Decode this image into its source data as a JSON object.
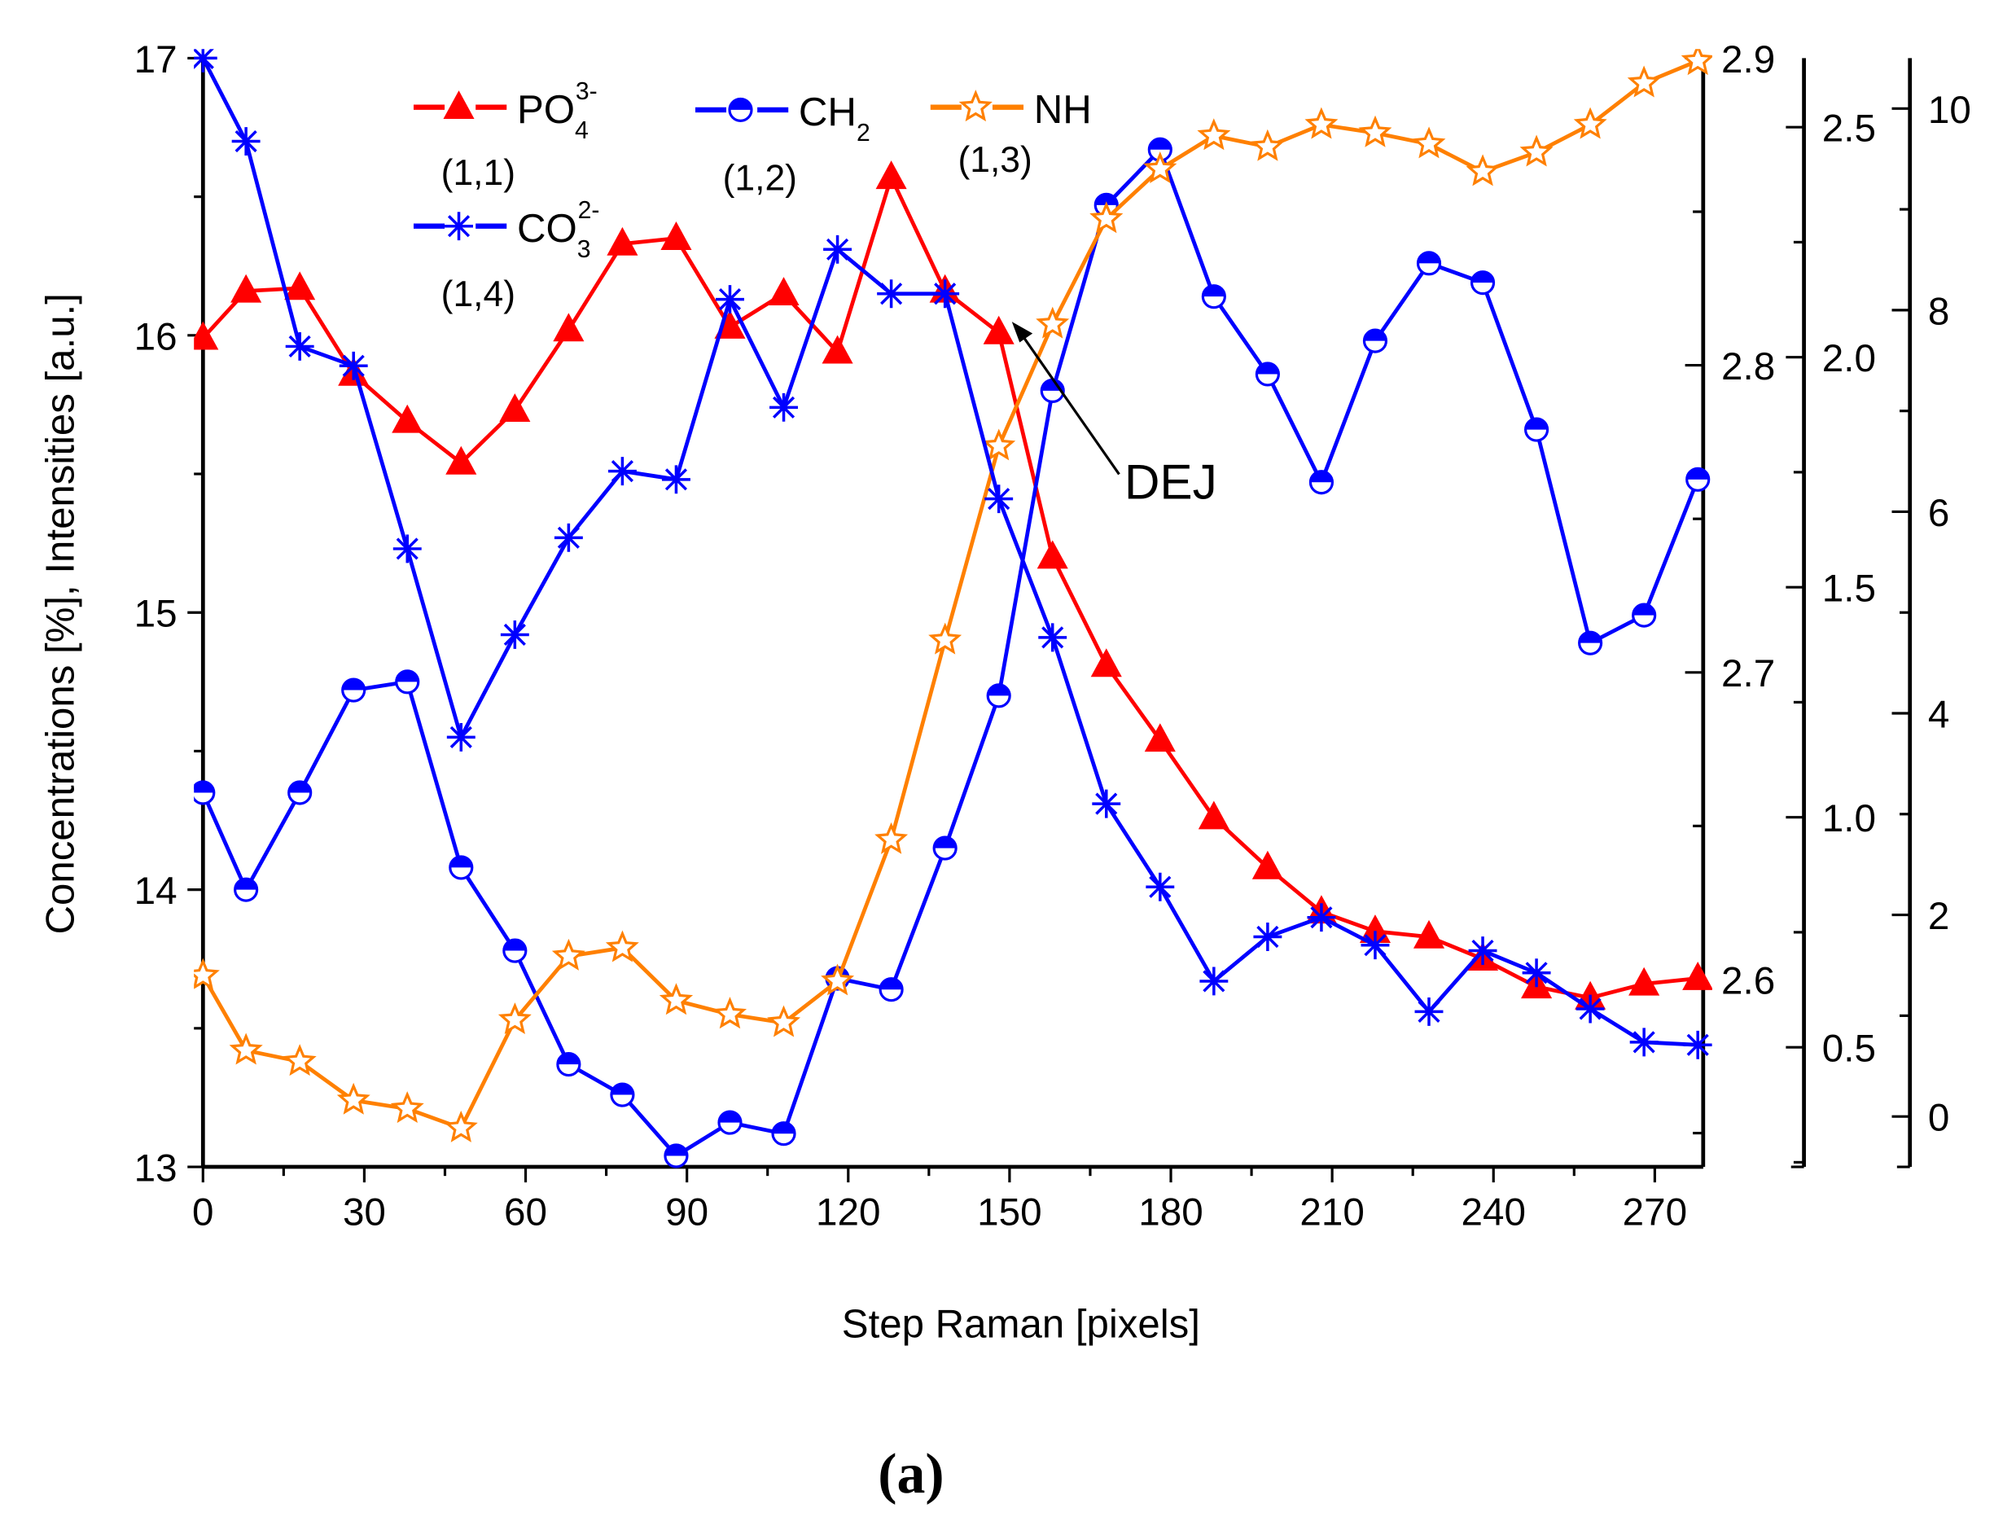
{
  "chart_data": {
    "type": "line",
    "title": "(a)",
    "xlabel": "Step Raman [pixels]",
    "ylabel": "Concentrations [%], Intensities [a.u.]",
    "xlim": [
      0,
      279
    ],
    "ylim": [
      13,
      17
    ],
    "x_ticks": [
      "0",
      "30",
      "60",
      "90",
      "120",
      "150",
      "180",
      "210",
      "240",
      "270"
    ],
    "y_ticks": [
      "13",
      "14",
      "15",
      "16",
      "17"
    ],
    "right_axes": [
      {
        "ticks": [
          "2.6",
          "2.7",
          "2.8",
          "2.9"
        ],
        "tick_values": [
          2.6,
          2.7,
          2.8,
          2.9
        ],
        "range": [
          2.539,
          2.9
        ]
      },
      {
        "ticks": [
          "0.5",
          "1.0",
          "1.5",
          "2.0",
          "2.5"
        ],
        "tick_values": [
          0.5,
          1.0,
          1.5,
          2.0,
          2.5
        ],
        "range": [
          0.24,
          2.65
        ]
      },
      {
        "ticks": [
          "0",
          "2",
          "4",
          "6",
          "8",
          "10"
        ],
        "tick_values": [
          0,
          2,
          4,
          6,
          8,
          10
        ],
        "range": [
          -0.5,
          10.5
        ]
      }
    ],
    "annotation": {
      "text": "DEJ",
      "points_to": [
        150,
        16.02
      ]
    },
    "x": [
      0,
      8,
      18,
      28,
      38,
      48,
      58,
      68,
      78,
      88,
      98,
      108,
      118,
      128,
      138,
      148,
      158,
      168,
      178,
      188,
      198,
      208,
      218,
      228,
      238,
      248,
      258,
      268,
      278
    ],
    "series": [
      {
        "name": "PO4",
        "sup": "3-",
        "sub": "4",
        "base": "PO",
        "tag": "(1,1)",
        "color": "#ff0000",
        "marker": "triangle",
        "values": [
          15.99,
          16.16,
          16.17,
          15.86,
          15.69,
          15.54,
          15.73,
          16.02,
          16.33,
          16.35,
          16.03,
          16.15,
          15.94,
          16.57,
          16.16,
          16.01,
          15.2,
          14.81,
          14.54,
          14.26,
          14.08,
          13.92,
          13.85,
          13.83,
          13.75,
          13.65,
          13.61,
          13.66,
          13.68
        ]
      },
      {
        "name": "CH2",
        "sup": "",
        "sub": "2",
        "base": "CH",
        "tag": "(1,2)",
        "color": "#0000ff",
        "marker": "half-circle",
        "values": [
          14.35,
          14.0,
          14.35,
          14.72,
          14.75,
          14.08,
          13.78,
          13.37,
          13.26,
          13.04,
          13.16,
          13.12,
          13.68,
          13.64,
          14.15,
          14.7,
          15.8,
          16.47,
          16.67,
          16.14,
          15.86,
          15.47,
          15.98,
          16.26,
          16.19,
          15.66,
          14.89,
          14.99,
          15.48
        ]
      },
      {
        "name": "NH",
        "sup": "",
        "sub": "",
        "base": "NH",
        "tag": "(1,3)",
        "color": "#ff8000",
        "marker": "star",
        "values": [
          13.69,
          13.42,
          13.38,
          13.24,
          13.21,
          13.14,
          13.53,
          13.76,
          13.79,
          13.6,
          13.55,
          13.52,
          13.67,
          14.18,
          14.9,
          15.6,
          16.04,
          16.42,
          16.6,
          16.72,
          16.68,
          16.76,
          16.73,
          16.69,
          16.59,
          16.66,
          16.76,
          16.91,
          16.99
        ]
      },
      {
        "name": "CO3",
        "sup": "2-",
        "sub": "3",
        "base": "CO",
        "tag": "(1,4)",
        "color": "#0000ff",
        "marker": "asterisk",
        "values": [
          17.0,
          16.7,
          15.96,
          15.89,
          15.23,
          14.55,
          14.92,
          15.27,
          15.51,
          15.48,
          16.13,
          15.74,
          16.31,
          16.15,
          16.15,
          15.41,
          14.91,
          14.31,
          14.01,
          13.67,
          13.83,
          13.9,
          13.8,
          13.56,
          13.78,
          13.7,
          13.57,
          13.45,
          13.44
        ]
      }
    ]
  }
}
